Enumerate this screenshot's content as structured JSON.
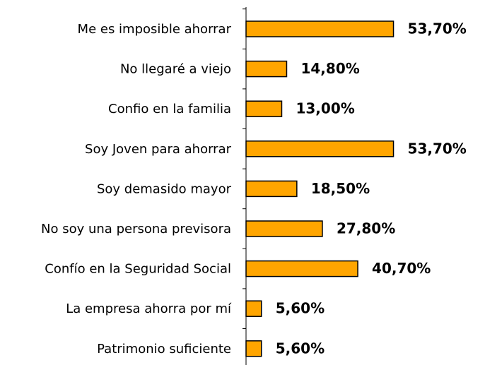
{
  "chart_data": {
    "type": "bar",
    "orientation": "horizontal",
    "categories": [
      "Me es imposible ahorrar",
      "No llegaré a viejo",
      "Confio en la familia",
      "Soy Joven para ahorrar",
      "Soy demasido mayor",
      "No soy una persona previsora",
      "Confío en la Seguridad Social",
      "La empresa ahorra por mí",
      "Patrimonio suficiente"
    ],
    "values": [
      53.7,
      14.8,
      13.0,
      53.7,
      18.5,
      27.8,
      40.7,
      5.6,
      5.6
    ],
    "value_labels": [
      "53,70%",
      "14,80%",
      "13,00%",
      "53,70%",
      "18,50%",
      "27,80%",
      "40,70%",
      "5,60%",
      "5,60%"
    ],
    "color": "#ffa500",
    "xlim": [
      0,
      60
    ]
  }
}
